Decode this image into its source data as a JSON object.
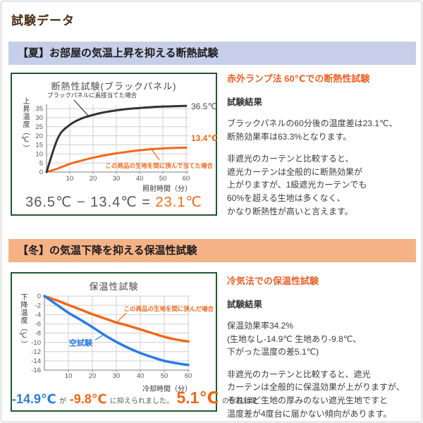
{
  "page": {
    "title": "試験データ"
  },
  "summer": {
    "header": "【夏】お部屋の気温上昇を抑える断熱試験",
    "result_heading": "赤外ランプ法 60℃での断熱性試験",
    "result_label": "試験結果",
    "paragraph1": "ブラックパネルの60分後の温度差は23.1℃、\n断熱効果率は63.3%となります。",
    "paragraph2": "非遮光のカーテンと比較すると、\n遮光カーテンは全般的に断熱効果が\n上がりますが、1級遮光カーテンでも\n60%を超える生地は多くなく、\nかなり断熱性が高いと言えます。",
    "formula": {
      "minuend": "36.5℃",
      "operator": "−",
      "subtrahend": "13.4℃",
      "equals": "=",
      "result": "23.1℃"
    }
  },
  "winter": {
    "header": "【冬】の気温下降を抑える保温性試験",
    "result_heading": "冷気法での保温性試験",
    "result_label": "試験結果",
    "paragraph1": "保温効果率34.2%\n(生地なし-14.9℃ 生地あり-9.8℃、\n下がった温度の差5.1℃)",
    "paragraph2": "非遮光のカーテンと比較すると、遮光\nカーテンは全般的に保温効果が上がりますが、\nそれほど生地の厚みのない遮光生地ですと\n温度差が4度台に届かない傾向があります。",
    "formula": {
      "blank_value": "-14.9℃",
      "particle": "が",
      "fabric_value": "-9.8℃",
      "suffix": "に抑えられました。",
      "diff_value": "5.1℃",
      "diff_suffix": "の保温効果"
    }
  },
  "chart_data": [
    {
      "type": "line",
      "title": "断熱性試験(ブラックパネル)",
      "xlabel": "照射時間（分）",
      "ylabel": "上昇温度（℃）",
      "xlim": [
        0,
        60
      ],
      "ylim": [
        0,
        37
      ],
      "xticks": [
        10,
        20,
        30,
        40,
        50,
        60
      ],
      "yticks": [
        0,
        5,
        10,
        15,
        20,
        25,
        30,
        35
      ],
      "grid": true,
      "x": [
        0,
        5,
        10,
        15,
        20,
        25,
        30,
        35,
        40,
        45,
        50,
        55,
        60
      ],
      "series": [
        {
          "name": "ブラックパネルに直接当てた場合",
          "color": "#333333",
          "end_label": "36.5℃",
          "values": [
            0,
            19,
            26,
            29.5,
            31.5,
            33,
            34,
            34.8,
            35.3,
            35.8,
            36.1,
            36.3,
            36.5
          ]
        },
        {
          "name": "この商品の生地を間に挟んで当てた場合",
          "color": "#f0681a",
          "end_label": "13.4℃",
          "values": [
            0,
            2,
            4.5,
            6.3,
            7.9,
            9.2,
            10.3,
            11.2,
            12,
            12.6,
            13,
            13.3,
            13.4
          ]
        }
      ]
    },
    {
      "type": "line",
      "title": "保温性試験",
      "xlabel": "冷却時間（分）",
      "ylabel": "下降温度（℃）",
      "xlim": [
        0,
        60
      ],
      "ylim": [
        -16,
        0
      ],
      "xticks": [
        10,
        20,
        30,
        40,
        50,
        60
      ],
      "yticks": [
        0,
        -2,
        -4,
        -6,
        -8,
        -10,
        -12,
        -14,
        -16
      ],
      "grid": true,
      "x": [
        0,
        5,
        10,
        15,
        20,
        25,
        30,
        35,
        40,
        45,
        50,
        55,
        60
      ],
      "series": [
        {
          "name": "空試験",
          "color": "#2b7ce0",
          "values": [
            0,
            -1.8,
            -3.6,
            -5.1,
            -6.7,
            -8.4,
            -9.9,
            -11.2,
            -12.3,
            -13.2,
            -14,
            -14.5,
            -14.9
          ]
        },
        {
          "name": "この商品の生地を間に挟んだ場合",
          "color": "#f0681a",
          "values": [
            0,
            -0.9,
            -1.9,
            -2.9,
            -3.9,
            -4.8,
            -5.7,
            -6.4,
            -7.2,
            -8,
            -8.8,
            -9.4,
            -9.8
          ]
        }
      ]
    }
  ],
  "colors": {
    "accent_orange": "#f0681a",
    "accent_blue": "#2b7ce0",
    "chart_border_green": "#20582e",
    "summer_header_bg": "#c6cee9",
    "winter_header_bg": "#f6b287",
    "title_brown": "#4a2c15"
  }
}
